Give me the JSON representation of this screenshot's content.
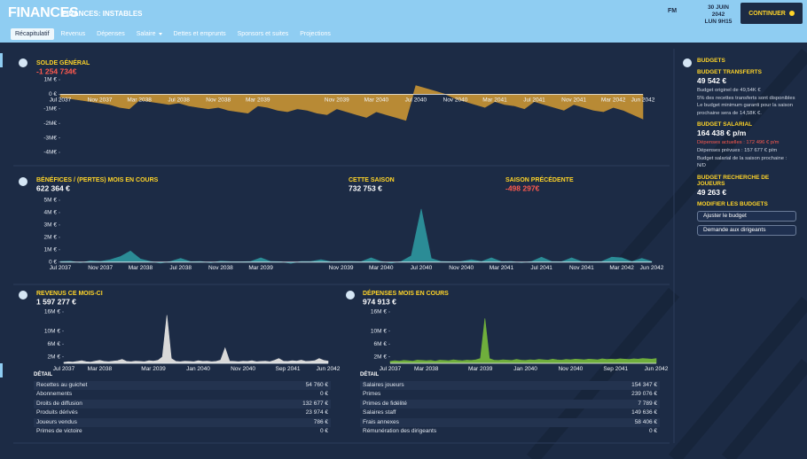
{
  "header": {
    "title": "FINANCES",
    "subtitle": "FINANCES: INSTABLES",
    "logo": "FM",
    "date": "30 JUIN 2042",
    "time": "LUN 9H15",
    "continue": "CONTINUER",
    "tabs": [
      "Récapitulatif",
      "Revenus",
      "Dépenses",
      "Salaire",
      "Dettes et emprunts",
      "Sponsors et suites",
      "Projections"
    ],
    "active_tab": 0
  },
  "chart_data": [
    {
      "type": "area",
      "title": "SOLDE GÉNÉRAL",
      "value": "-1 254 734€",
      "value_color": "#ff5a4e",
      "color": "#b88a35",
      "categories": [
        "Jul 2037",
        null,
        null,
        null,
        "Nov 2037",
        null,
        null,
        null,
        "Mar 2038",
        null,
        null,
        null,
        "Jul 2038",
        null,
        null,
        null,
        "Nov 2038",
        null,
        null,
        null,
        "Mar 2039",
        null,
        null,
        null,
        null,
        null,
        null,
        null,
        "Nov 2039",
        null,
        null,
        null,
        "Mar 2040",
        null,
        null,
        null,
        "Jul 2040",
        null,
        null,
        null,
        "Nov 2040",
        null,
        null,
        null,
        "Mar 2041",
        null,
        null,
        null,
        "Jul 2041",
        null,
        null,
        null,
        "Nov 2041",
        null,
        null,
        null,
        "Mar 2042",
        null,
        null,
        "Jun 2042"
      ],
      "values": [
        -200000,
        -300000,
        -400000,
        -500000,
        -600000,
        -700000,
        -900000,
        -1000000,
        -400000,
        -500000,
        -600000,
        -700000,
        -600000,
        -800000,
        -900000,
        -1000000,
        -900000,
        -1100000,
        -1200000,
        -1300000,
        -800000,
        -900000,
        -1100000,
        -1200000,
        -1000000,
        -1100000,
        -1300000,
        -1400000,
        -1000000,
        -1200000,
        -1400000,
        -1600000,
        -1200000,
        -1400000,
        -1600000,
        -1800000,
        600000,
        400000,
        200000,
        0,
        -300000,
        -500000,
        -700000,
        -900000,
        -500000,
        -700000,
        -800000,
        -1000000,
        -500000,
        -700000,
        -900000,
        -1100000,
        -700000,
        -900000,
        -1100000,
        -1200000,
        -900000,
        -1100000,
        -1400000,
        -1700000
      ],
      "ylim": [
        -4000000,
        1000000
      ],
      "yticks": [
        {
          "value": 1000000,
          "label": "1M €"
        },
        {
          "value": 0,
          "label": "0 €"
        },
        {
          "value": -1000000,
          "label": "-1M€"
        },
        {
          "value": -2000000,
          "label": "-2M€"
        },
        {
          "value": -3000000,
          "label": "-3M€"
        },
        {
          "value": -4000000,
          "label": "-4M€"
        }
      ]
    },
    {
      "type": "area",
      "title": "BÉNÉFICES / (PERTES) MOIS EN COURS",
      "value": "622 364 €",
      "color": "#2b8c96",
      "stats": [
        {
          "label": "CETTE SAISON",
          "value": "732 753 €"
        },
        {
          "label": "SAISON PRÉCÉDENTE",
          "value": "-498 297€",
          "value_color": "#ff5a4e"
        }
      ],
      "categories": [
        "Jul 2037",
        null,
        null,
        null,
        "Nov 2037",
        null,
        null,
        null,
        "Mar 2038",
        null,
        null,
        null,
        "Jul 2038",
        null,
        null,
        null,
        "Nov 2038",
        null,
        null,
        null,
        "Mar 2039",
        null,
        null,
        null,
        null,
        null,
        null,
        null,
        "Nov 2039",
        null,
        null,
        null,
        "Mar 2040",
        null,
        null,
        null,
        "Jul 2040",
        null,
        null,
        null,
        "Nov 2040",
        null,
        null,
        null,
        "Mar 2041",
        null,
        null,
        null,
        "Jul 2041",
        null,
        null,
        null,
        "Nov 2041",
        null,
        null,
        null,
        "Mar 2042",
        null,
        null,
        "Jun 2042"
      ],
      "values": [
        50000,
        80000,
        -50000,
        100000,
        60000,
        200000,
        450000,
        900000,
        250000,
        50000,
        -80000,
        60000,
        300000,
        40000,
        50000,
        -60000,
        80000,
        40000,
        30000,
        60000,
        350000,
        50000,
        40000,
        -100000,
        60000,
        50000,
        200000,
        40000,
        50000,
        60000,
        40000,
        350000,
        50000,
        -80000,
        60000,
        500000,
        4300000,
        300000,
        50000,
        40000,
        60000,
        200000,
        50000,
        350000,
        40000,
        60000,
        -50000,
        50000,
        400000,
        60000,
        40000,
        350000,
        50000,
        40000,
        60000,
        400000,
        350000,
        50000,
        300000,
        60000
      ],
      "ylim": [
        -300000,
        5000000
      ],
      "yticks": [
        {
          "value": 5000000,
          "label": "5M €"
        },
        {
          "value": 4000000,
          "label": "4M €"
        },
        {
          "value": 3000000,
          "label": "3M €"
        },
        {
          "value": 2000000,
          "label": "2M €"
        },
        {
          "value": 1000000,
          "label": "1M €"
        },
        {
          "value": 0,
          "label": "0 €"
        }
      ]
    },
    {
      "type": "area",
      "title": "REVENUS CE MOIS-CI",
      "value": "1 597 277 €",
      "color": "#d9d9d9",
      "categories": [
        "Jul 2037",
        null,
        null,
        null,
        null,
        null,
        null,
        null,
        "Mar 2038",
        null,
        null,
        null,
        null,
        null,
        null,
        null,
        null,
        null,
        null,
        null,
        "Mar 2039",
        null,
        null,
        null,
        null,
        null,
        null,
        null,
        null,
        null,
        "Jan 2040",
        null,
        null,
        null,
        null,
        null,
        null,
        null,
        null,
        null,
        "Nov 2040",
        null,
        null,
        null,
        null,
        null,
        null,
        null,
        null,
        null,
        "Sep 2041",
        null,
        null,
        null,
        null,
        null,
        null,
        null,
        null,
        "Jun 2042"
      ],
      "values": [
        300000,
        500000,
        400000,
        600000,
        800000,
        500000,
        400000,
        700000,
        900000,
        600000,
        500000,
        700000,
        800000,
        1200000,
        600000,
        500000,
        700000,
        600000,
        500000,
        800000,
        700000,
        900000,
        2000000,
        15000000,
        1500000,
        600000,
        500000,
        700000,
        600000,
        500000,
        800000,
        600000,
        700000,
        500000,
        600000,
        1000000,
        4800000,
        700000,
        600000,
        500000,
        700000,
        600000,
        800000,
        500000,
        600000,
        700000,
        500000,
        900000,
        1500000,
        700000,
        600000,
        800000,
        700000,
        1000000,
        600000,
        700000,
        800000,
        1500000,
        900000,
        700000
      ],
      "ylim": [
        0,
        16000000
      ],
      "yticks": [
        {
          "value": 16000000,
          "label": "16M €"
        },
        {
          "value": 10000000,
          "label": "10M €"
        },
        {
          "value": 6000000,
          "label": "6M €"
        },
        {
          "value": 2000000,
          "label": "2M €"
        }
      ]
    },
    {
      "type": "area",
      "title": "DÉPENSES MOIS EN COURS",
      "value": "974 913 €",
      "color": "#6fae3c",
      "categories": [
        "Jul 2037",
        null,
        null,
        null,
        null,
        null,
        null,
        null,
        "Mar 2038",
        null,
        null,
        null,
        null,
        null,
        null,
        null,
        null,
        null,
        null,
        null,
        "Mar 2039",
        null,
        null,
        null,
        null,
        null,
        null,
        null,
        null,
        null,
        "Jan 2040",
        null,
        null,
        null,
        null,
        null,
        null,
        null,
        null,
        null,
        "Nov 2040",
        null,
        null,
        null,
        null,
        null,
        null,
        null,
        null,
        null,
        "Sep 2041",
        null,
        null,
        null,
        null,
        null,
        null,
        null,
        null,
        "Jun 2042"
      ],
      "values": [
        600000,
        800000,
        700000,
        900000,
        800000,
        700000,
        1000000,
        900000,
        800000,
        900000,
        700000,
        1000000,
        900000,
        800000,
        1100000,
        900000,
        800000,
        1000000,
        900000,
        1100000,
        1500000,
        14000000,
        1500000,
        1000000,
        900000,
        1100000,
        1000000,
        900000,
        1200000,
        1000000,
        900000,
        1100000,
        1000000,
        1200000,
        1100000,
        1000000,
        1300000,
        1100000,
        1000000,
        1200000,
        1100000,
        1300000,
        1200000,
        1100000,
        1300000,
        1200000,
        1100000,
        1400000,
        1200000,
        1300000,
        1200000,
        1400000,
        1300000,
        1200000,
        1400000,
        1300000,
        1500000,
        1400000,
        1300000,
        1500000
      ],
      "ylim": [
        0,
        16000000
      ],
      "yticks": [
        {
          "value": 16000000,
          "label": "16M €"
        },
        {
          "value": 10000000,
          "label": "10M €"
        },
        {
          "value": 6000000,
          "label": "6M €"
        },
        {
          "value": 2000000,
          "label": "2M €"
        }
      ]
    }
  ],
  "tables": [
    {
      "title": "DÉTAIL",
      "rows": [
        [
          "Recettes au guichet",
          "54 760 €"
        ],
        [
          "Abonnements",
          "0 €"
        ],
        [
          "Droits de diffusion",
          "132 677 €"
        ],
        [
          "Produits dérivés",
          "23 974 €"
        ],
        [
          "Joueurs vendus",
          "786 €"
        ],
        [
          "Primes de victoire",
          "0 €"
        ]
      ]
    },
    {
      "title": "DÉTAIL",
      "rows": [
        [
          "Salaires joueurs",
          "154 347 €"
        ],
        [
          "Primes",
          "239 076 €"
        ],
        [
          "Primes de fidélité",
          "7 789 €"
        ],
        [
          "Salaires staff",
          "149 636 €"
        ],
        [
          "Frais annexes",
          "58 406 €"
        ],
        [
          "Rémunération des dirigeants",
          "0 €"
        ]
      ]
    }
  ],
  "budgets": {
    "title": "BUDGETS",
    "sections": [
      {
        "title": "BUDGET TRANSFERTS",
        "value": "49 542 €",
        "notes": [
          "Budget originel de 49,54K €",
          "5% des recettes transferts sont disponibles",
          "Le budget minimum garanti pour la saison prochaine sera de 14,58K €."
        ]
      },
      {
        "title": "BUDGET SALARIAL",
        "value": "164 438 € p/m",
        "notes": [
          {
            "text": "Dépenses actuelles : 172 496 € p/m",
            "color": "#ff5a4e"
          },
          "Dépenses prévues : 157 677 € p/m",
          "Budget salarial de la saison prochaine : N/D"
        ]
      },
      {
        "title": "BUDGET RECHERCHE DE JOUEURS",
        "value": "49 263 €"
      }
    ],
    "modify": "MODIFIER LES BUDGETS",
    "buttons": [
      "Ajuster le budget",
      "Demande aux dirigeants"
    ]
  }
}
